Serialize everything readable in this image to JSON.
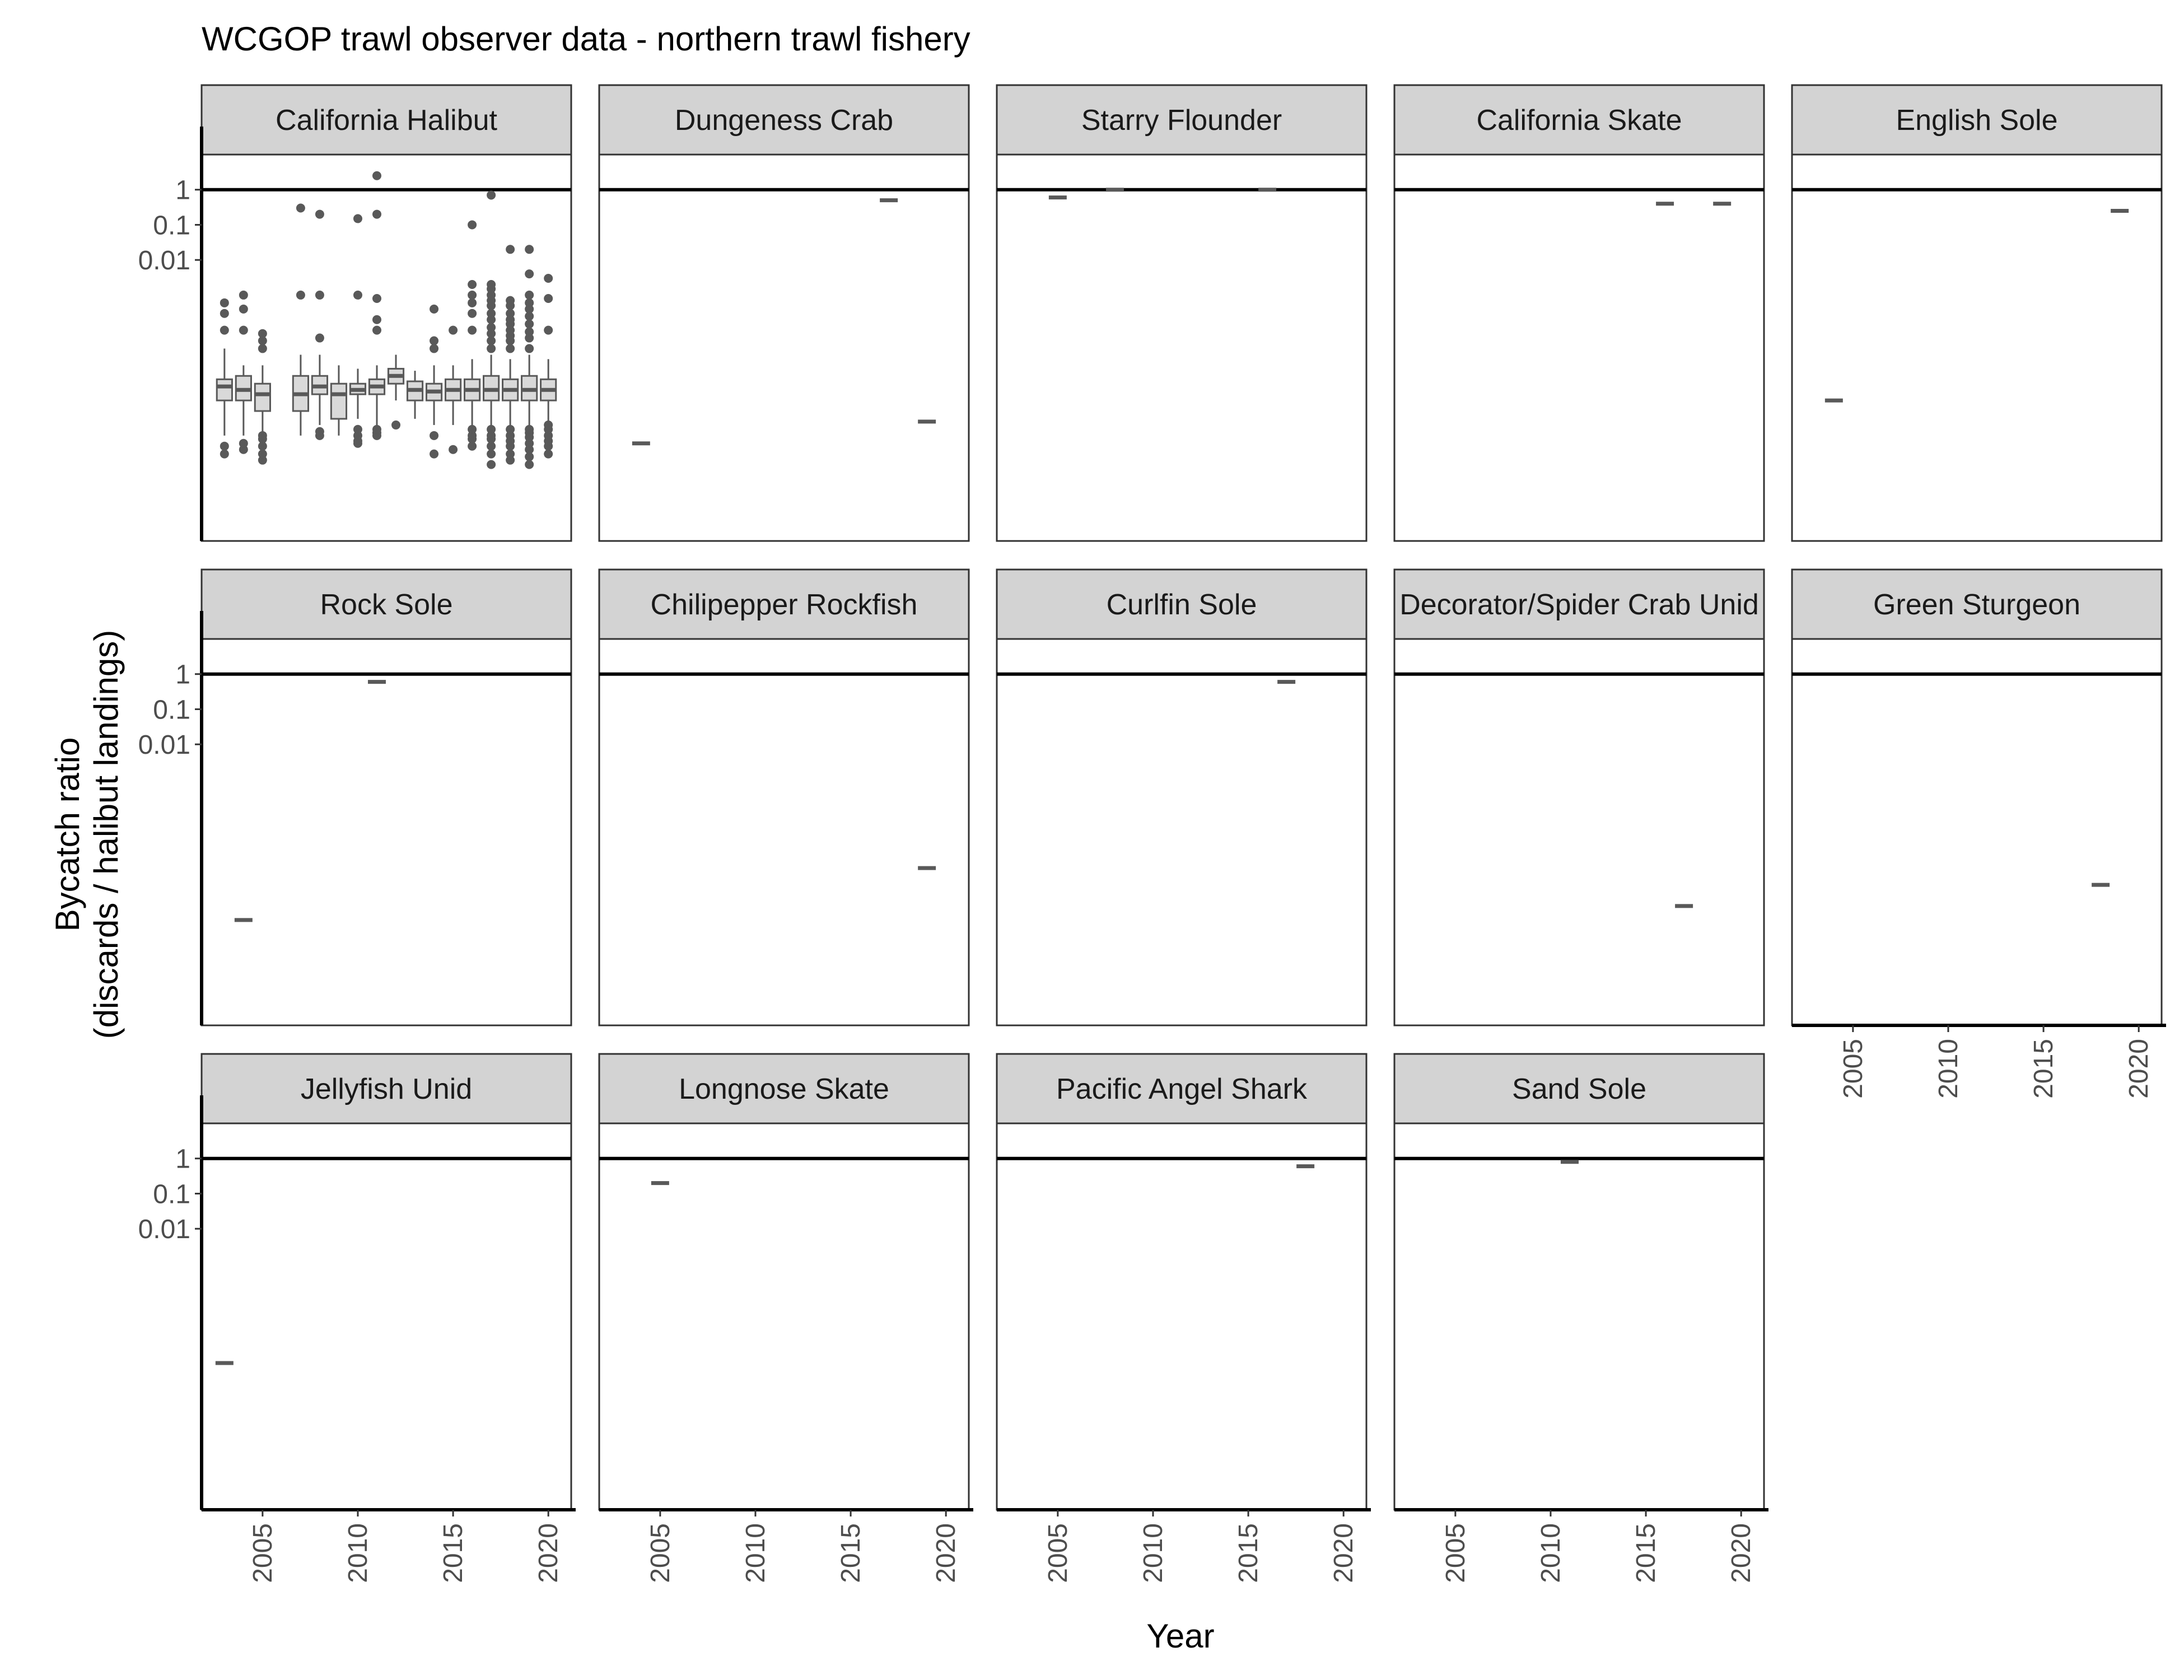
{
  "title": "WCGOP trawl observer data - northern trawl fishery",
  "x_axis_title": "Year",
  "y_axis_title_lines": [
    "Bycatch ratio",
    "(discards / halibut landings)"
  ],
  "chart_data": {
    "type": "boxplot",
    "title": "WCGOP trawl observer data - northern trawl fishery",
    "xlabel": "Year",
    "ylabel": "Bycatch ratio\n(discards / halibut landings)",
    "y_scale": "log10",
    "x_ticks": [
      2005,
      2010,
      2015,
      2020
    ],
    "x_tick_labels": [
      "2005",
      "2010",
      "2015",
      "2020"
    ],
    "y_ticks": [
      0.01,
      0.1,
      1
    ],
    "y_tick_labels": [
      "0.01",
      "0.1",
      "1"
    ],
    "xlim": [
      2001.8,
      2021.2
    ],
    "ylim": [
      1e-10,
      10
    ],
    "reference_line": {
      "y": 1
    },
    "grid": false,
    "layout": {
      "columns": 5,
      "rows": 3
    },
    "panels": [
      {
        "name": "California Halibut",
        "boxes": [
          {
            "x": 2003,
            "q1": 1e-06,
            "median": 2.5e-06,
            "q3": 4e-06,
            "whisker_low": 1e-07,
            "whisker_high": 3e-05,
            "outliers": [
              3e-08,
              5e-08,
              0.0001,
              0.0003,
              0.0006
            ]
          },
          {
            "x": 2004,
            "q1": 1e-06,
            "median": 2e-06,
            "q3": 5e-06,
            "whisker_low": 1e-07,
            "whisker_high": 1e-05,
            "outliers": [
              4e-08,
              6e-08,
              0.0001,
              0.0004,
              0.001
            ]
          },
          {
            "x": 2005,
            "q1": 5e-07,
            "median": 1.5e-06,
            "q3": 3e-06,
            "whisker_low": 1e-07,
            "whisker_high": 1e-05,
            "outliers": [
              2e-08,
              3e-08,
              5e-08,
              8e-08,
              1e-07,
              3e-05,
              5e-05,
              8e-05
            ]
          },
          {
            "x": 2007,
            "q1": 5e-07,
            "median": 1.5e-06,
            "q3": 5e-06,
            "whisker_low": 1e-07,
            "whisker_high": 2e-05,
            "outliers": [
              0.001,
              0.3
            ]
          },
          {
            "x": 2008,
            "q1": 1.5e-06,
            "median": 2.5e-06,
            "q3": 5e-06,
            "whisker_low": 2e-07,
            "whisker_high": 2e-05,
            "outliers": [
              1e-07,
              1.3e-07,
              6e-05,
              0.001,
              0.2
            ]
          },
          {
            "x": 2009,
            "q1": 3e-07,
            "median": 1.5e-06,
            "q3": 3e-06,
            "whisker_low": 1e-07,
            "whisker_high": 1e-05,
            "outliers": []
          },
          {
            "x": 2010,
            "q1": 1.5e-06,
            "median": 2e-06,
            "q3": 3e-06,
            "whisker_low": 3e-07,
            "whisker_high": 8e-06,
            "outliers": [
              6e-08,
              7e-08,
              1e-07,
              1.5e-07,
              0.001,
              0.15
            ]
          },
          {
            "x": 2011,
            "q1": 1.5e-06,
            "median": 2.5e-06,
            "q3": 4e-06,
            "whisker_low": 1e-07,
            "whisker_high": 1e-05,
            "outliers": [
              1e-07,
              1.2e-07,
              1.5e-07,
              0.0001,
              0.0002,
              0.0008,
              0.2,
              2.5
            ]
          },
          {
            "x": 2012,
            "q1": 3e-06,
            "median": 5e-06,
            "q3": 8e-06,
            "whisker_low": 1e-06,
            "whisker_high": 2e-05,
            "outliers": [
              2e-07
            ]
          },
          {
            "x": 2013,
            "q1": 1e-06,
            "median": 2e-06,
            "q3": 3.5e-06,
            "whisker_low": 3e-07,
            "whisker_high": 7e-06,
            "outliers": []
          },
          {
            "x": 2014,
            "q1": 1e-06,
            "median": 1.8e-06,
            "q3": 3e-06,
            "whisker_low": 2e-07,
            "whisker_high": 1e-05,
            "outliers": [
              3e-08,
              1e-07,
              3e-05,
              5e-05,
              0.0004
            ]
          },
          {
            "x": 2015,
            "q1": 1e-06,
            "median": 2e-06,
            "q3": 4e-06,
            "whisker_low": 2e-07,
            "whisker_high": 1e-05,
            "outliers": [
              4e-08,
              0.0001
            ]
          },
          {
            "x": 2016,
            "q1": 1e-06,
            "median": 2e-06,
            "q3": 4e-06,
            "whisker_low": 1.5e-07,
            "whisker_high": 1.5e-05,
            "outliers": [
              5e-08,
              8e-08,
              1e-07,
              1.5e-07,
              0.0001,
              0.0003,
              0.0006,
              0.001,
              0.002,
              0.1
            ]
          },
          {
            "x": 2017,
            "q1": 1e-06,
            "median": 2e-06,
            "q3": 5e-06,
            "whisker_low": 1.5e-07,
            "whisker_high": 2e-05,
            "outliers": [
              1.5e-08,
              3e-08,
              5e-08,
              8e-08,
              1e-07,
              1.5e-07,
              3e-05,
              5e-05,
              8e-05,
              0.00012,
              0.0002,
              0.0003,
              0.0005,
              0.0007,
              0.001,
              0.0015,
              0.002,
              0.7
            ]
          },
          {
            "x": 2018,
            "q1": 1e-06,
            "median": 2e-06,
            "q3": 4e-06,
            "whisker_low": 1.5e-07,
            "whisker_high": 1.5e-05,
            "outliers": [
              2e-08,
              3e-08,
              5e-08,
              7e-08,
              1e-07,
              1.5e-07,
              3e-05,
              5e-05,
              7e-05,
              0.0001,
              0.00015,
              0.0002,
              0.0003,
              0.0005,
              0.0007,
              0.02
            ]
          },
          {
            "x": 2019,
            "q1": 1e-06,
            "median": 2e-06,
            "q3": 5e-06,
            "whisker_low": 1.5e-07,
            "whisker_high": 2e-05,
            "outliers": [
              1.5e-08,
              2.5e-08,
              4e-08,
              6e-08,
              9e-08,
              1.2e-07,
              1.5e-07,
              3e-05,
              6e-05,
              9e-05,
              0.00015,
              0.00025,
              0.0004,
              0.0006,
              0.001,
              0.004,
              0.02
            ]
          },
          {
            "x": 2020,
            "q1": 1e-06,
            "median": 2e-06,
            "q3": 4e-06,
            "whisker_low": 2e-07,
            "whisker_high": 1.5e-05,
            "outliers": [
              3e-08,
              5e-08,
              7e-08,
              1e-07,
              1.5e-07,
              2e-07,
              0.0001,
              0.0008,
              0.003
            ]
          }
        ]
      },
      {
        "name": "Dungeness Crab",
        "points": [
          {
            "x": 2004,
            "y": 6e-08
          },
          {
            "x": 2017,
            "y": 0.5
          },
          {
            "x": 2019,
            "y": 2.5e-07
          }
        ]
      },
      {
        "name": "Starry Flounder",
        "points": [
          {
            "x": 2005,
            "y": 0.6
          },
          {
            "x": 2008,
            "y": 1
          },
          {
            "x": 2016,
            "y": 1
          }
        ]
      },
      {
        "name": "California Skate",
        "points": [
          {
            "x": 2016,
            "y": 0.4
          },
          {
            "x": 2019,
            "y": 0.4
          }
        ]
      },
      {
        "name": "English Sole",
        "points": [
          {
            "x": 2004,
            "y": 1e-06
          },
          {
            "x": 2019,
            "y": 0.25
          }
        ]
      },
      {
        "name": "Rock Sole",
        "points": [
          {
            "x": 2004,
            "y": 1e-07
          },
          {
            "x": 2011,
            "y": 0.6
          }
        ]
      },
      {
        "name": "Chilipepper Rockfish",
        "points": [
          {
            "x": 2019,
            "y": 3e-06
          }
        ]
      },
      {
        "name": "Curlfin Sole",
        "points": [
          {
            "x": 2017,
            "y": 0.6
          }
        ]
      },
      {
        "name": "Decorator/Spider Crab Unid",
        "points": [
          {
            "x": 2017,
            "y": 2.5e-07
          }
        ]
      },
      {
        "name": "Green Sturgeon",
        "points": [
          {
            "x": 2018,
            "y": 1e-06
          }
        ]
      },
      {
        "name": "Jellyfish Unid",
        "points": [
          {
            "x": 2003,
            "y": 1.5e-06
          }
        ]
      },
      {
        "name": "Longnose Skate",
        "points": [
          {
            "x": 2005,
            "y": 0.2
          }
        ]
      },
      {
        "name": "Pacific Angel Shark",
        "points": [
          {
            "x": 2018,
            "y": 0.6
          }
        ]
      },
      {
        "name": "Sand Sole",
        "points": [
          {
            "x": 2011,
            "y": 0.8
          }
        ]
      }
    ]
  }
}
